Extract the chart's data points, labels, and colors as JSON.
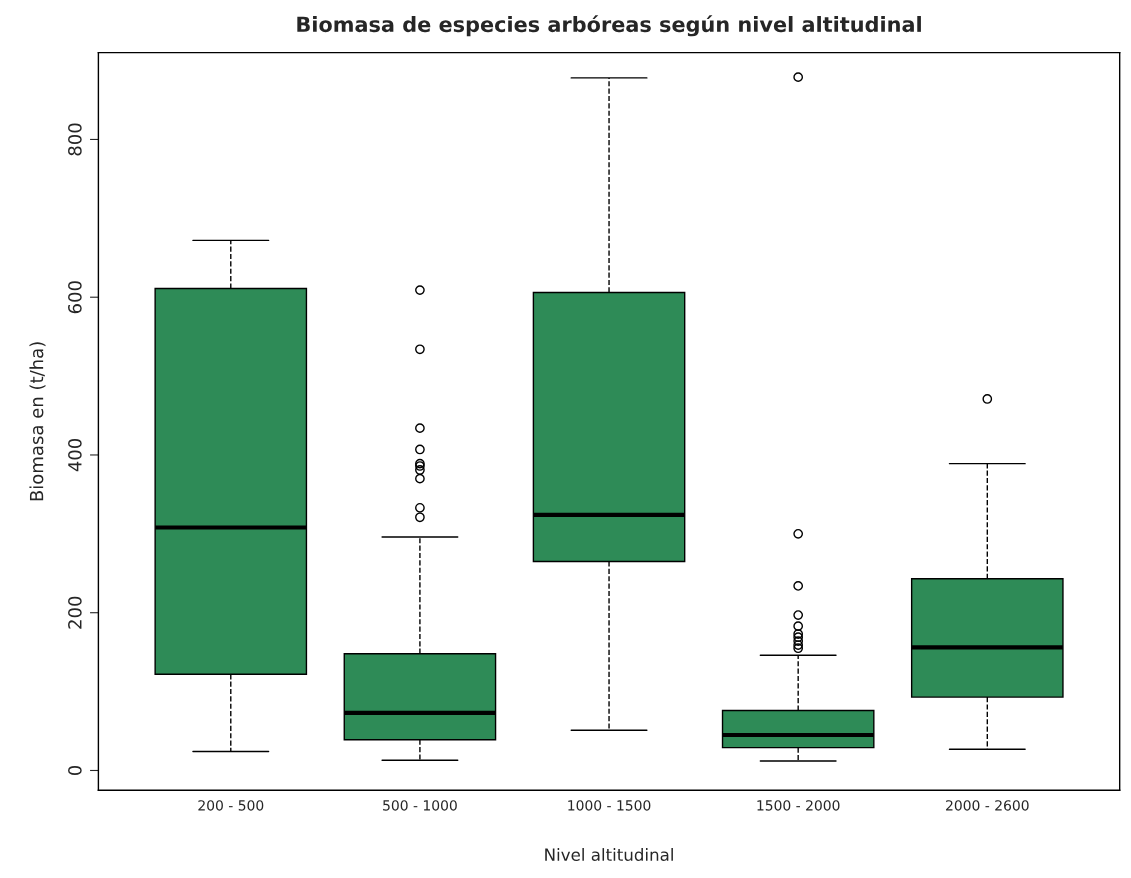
{
  "chart_data": {
    "type": "box",
    "title": "Biomasa de especies arbóreas según nivel altitudinal",
    "xlabel": "Nivel altitudinal",
    "ylabel": "Biomasa en (t/ha)",
    "categories": [
      "200 - 500",
      "500 - 1000",
      "1000 - 1500",
      "1500 - 2000",
      "2000 - 2600"
    ],
    "color": "#2e8b57",
    "ylim": [
      -25,
      910
    ],
    "yticks": [
      0,
      200,
      400,
      600,
      800
    ],
    "grid": false,
    "marker": "circle",
    "boxes": [
      {
        "low": 24,
        "q1": 122,
        "median": 308,
        "q3": 611,
        "high": 672
      },
      {
        "low": 13,
        "q1": 39,
        "median": 73,
        "q3": 148,
        "high": 296,
        "outliers": [
          609,
          534,
          434,
          407,
          389,
          386,
          381,
          370,
          333,
          321
        ]
      },
      {
        "low": 51,
        "q1": 265,
        "median": 324,
        "q3": 606,
        "high": 878
      },
      {
        "low": 12,
        "q1": 29,
        "median": 45,
        "q3": 76,
        "high": 146,
        "outliers": [
          879,
          300,
          234,
          197,
          183,
          173,
          169,
          164,
          159,
          155
        ]
      },
      {
        "low": 27,
        "q1": 93,
        "median": 156,
        "q3": 243,
        "high": 389,
        "outliers": [
          471
        ]
      }
    ]
  }
}
